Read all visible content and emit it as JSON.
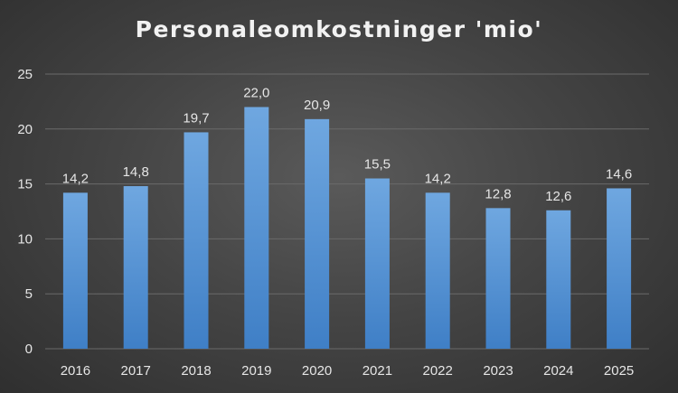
{
  "chart_data": {
    "type": "bar",
    "title": "Personaleomkostninger 'mio'",
    "categories": [
      "2016",
      "2017",
      "2018",
      "2019",
      "2020",
      "2021",
      "2022",
      "2023",
      "2024",
      "2025"
    ],
    "values": [
      14.2,
      14.8,
      19.7,
      22.0,
      20.9,
      15.5,
      14.2,
      12.8,
      12.6,
      14.6
    ],
    "data_labels": [
      "14,2",
      "14,8",
      "19,7",
      "22,0",
      "20,9",
      "15,5",
      "14,2",
      "12,8",
      "12,6",
      "14,6"
    ],
    "y_ticks": [
      "0",
      "5",
      "10",
      "15",
      "20",
      "25"
    ],
    "ylim": [
      0,
      25
    ],
    "xlabel": "",
    "ylabel": "",
    "grid": true,
    "legend": "none",
    "colors": {
      "bar_top": "#6fa7e0",
      "bar_bottom": "#3f7fc6",
      "grid": "#6a6a6a",
      "text": "#e6e6e6"
    }
  }
}
